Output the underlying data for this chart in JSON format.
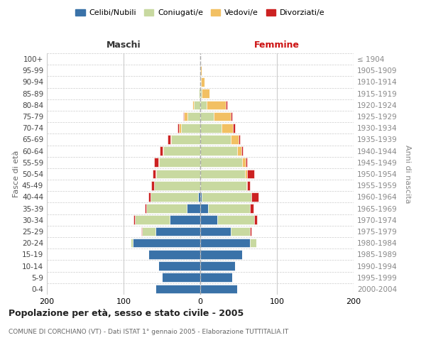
{
  "age_groups": [
    "0-4",
    "5-9",
    "10-14",
    "15-19",
    "20-24",
    "25-29",
    "30-34",
    "35-39",
    "40-44",
    "45-49",
    "50-54",
    "55-59",
    "60-64",
    "65-69",
    "70-74",
    "75-79",
    "80-84",
    "85-89",
    "90-94",
    "95-99",
    "100+"
  ],
  "birth_years": [
    "2000-2004",
    "1995-1999",
    "1990-1994",
    "1985-1989",
    "1980-1984",
    "1975-1979",
    "1970-1974",
    "1965-1969",
    "1960-1964",
    "1955-1959",
    "1950-1954",
    "1945-1949",
    "1940-1944",
    "1935-1939",
    "1930-1934",
    "1925-1929",
    "1920-1924",
    "1915-1919",
    "1910-1914",
    "1905-1909",
    "≤ 1904"
  ],
  "maschi": {
    "celibi": [
      58,
      50,
      55,
      68,
      88,
      58,
      40,
      18,
      3,
      0,
      0,
      0,
      0,
      0,
      0,
      0,
      0,
      0,
      0,
      0,
      0
    ],
    "coniugati": [
      0,
      0,
      0,
      0,
      3,
      18,
      45,
      52,
      62,
      60,
      57,
      54,
      48,
      38,
      25,
      17,
      8,
      2,
      0,
      0,
      0
    ],
    "vedovi": [
      0,
      0,
      0,
      0,
      0,
      0,
      0,
      0,
      0,
      0,
      1,
      1,
      1,
      1,
      3,
      4,
      2,
      0,
      0,
      0,
      0
    ],
    "divorziati": [
      0,
      0,
      0,
      0,
      0,
      1,
      2,
      2,
      3,
      4,
      4,
      5,
      4,
      4,
      2,
      1,
      0,
      0,
      0,
      0,
      0
    ]
  },
  "femmine": {
    "nubili": [
      48,
      42,
      45,
      55,
      65,
      40,
      22,
      10,
      2,
      0,
      0,
      0,
      0,
      0,
      0,
      0,
      0,
      0,
      0,
      0,
      0
    ],
    "coniugate": [
      0,
      0,
      0,
      0,
      8,
      25,
      48,
      55,
      65,
      60,
      58,
      55,
      48,
      40,
      28,
      18,
      8,
      2,
      1,
      0,
      0
    ],
    "vedove": [
      0,
      0,
      0,
      0,
      0,
      0,
      0,
      0,
      0,
      1,
      3,
      4,
      6,
      10,
      15,
      22,
      25,
      10,
      5,
      2,
      0
    ],
    "divorziate": [
      0,
      0,
      0,
      0,
      0,
      2,
      4,
      4,
      9,
      4,
      9,
      2,
      2,
      2,
      2,
      2,
      2,
      0,
      0,
      0,
      0
    ]
  },
  "colors": {
    "celibi": "#3A72A8",
    "coniugati": "#C8D9A0",
    "vedovi": "#F2C063",
    "divorziati": "#CC2222"
  },
  "xlim": 200,
  "title": "Popolazione per età, sesso e stato civile - 2005",
  "subtitle": "COMUNE DI CORCHIANO (VT) - Dati ISTAT 1° gennaio 2005 - Elaborazione TUTTITALIA.IT",
  "ylabel_left": "Fasce di età",
  "ylabel_right": "Anni di nascita",
  "xlabel_left": "Maschi",
  "xlabel_right": "Femmine",
  "legend_labels": [
    "Celibi/Nubili",
    "Coniugati/e",
    "Vedovi/e",
    "Divorziati/e"
  ],
  "background_color": "#ffffff",
  "grid_color": "#cccccc"
}
